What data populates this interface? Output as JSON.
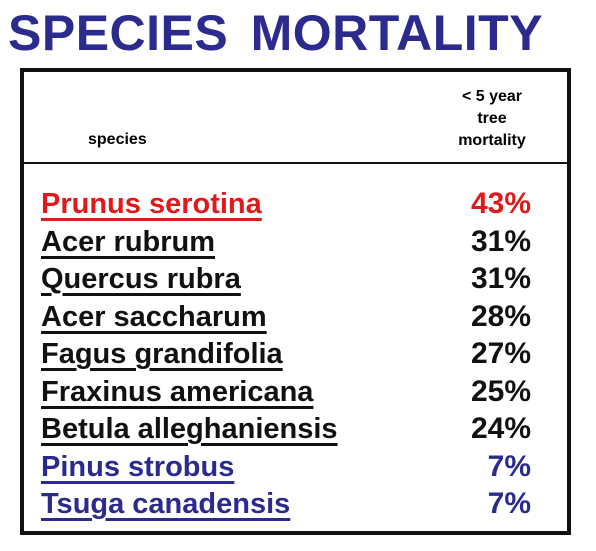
{
  "title": "SPECIES  MORTALITY",
  "colors": {
    "title": "#2a2b8c",
    "highlight": "#e0191c",
    "default": "#111111",
    "low": "#2a2b8c",
    "border": "#111111"
  },
  "header": {
    "species_label": "species",
    "mortality_label_lines": [
      "< 5 year",
      "tree",
      "mortality"
    ]
  },
  "rows": [
    {
      "species": "Prunus serotina",
      "mortality": "43%",
      "value": 43,
      "tone": "highlight"
    },
    {
      "species": "Acer rubrum",
      "mortality": "31%",
      "value": 31,
      "tone": "default"
    },
    {
      "species": "Quercus rubra",
      "mortality": "31%",
      "value": 31,
      "tone": "default"
    },
    {
      "species": "Acer saccharum",
      "mortality": "28%",
      "value": 28,
      "tone": "default"
    },
    {
      "species": "Fagus grandifolia",
      "mortality": "27%",
      "value": 27,
      "tone": "default"
    },
    {
      "species": "Fraxinus americana",
      "mortality": "25%",
      "value": 25,
      "tone": "default"
    },
    {
      "species": "Betula alleghaniensis",
      "mortality": "24%",
      "value": 24,
      "tone": "default"
    },
    {
      "species": "Pinus strobus",
      "mortality": "7%",
      "value": 7,
      "tone": "low"
    },
    {
      "species": "Tsuga canadensis",
      "mortality": "7%",
      "value": 7,
      "tone": "low"
    }
  ]
}
